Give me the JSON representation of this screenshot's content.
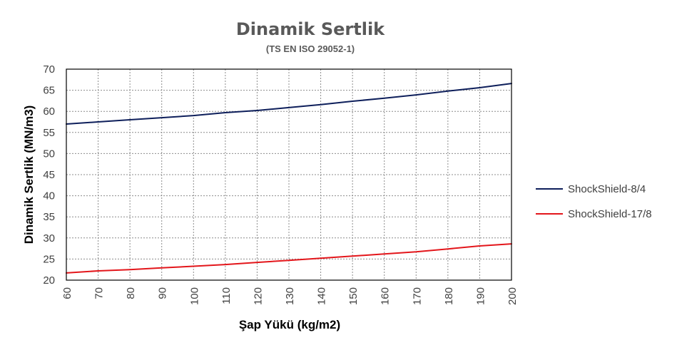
{
  "chart_data": {
    "type": "line",
    "title": "Dinamik Sertlik",
    "subtitle": "(TS EN ISO 29052-1)",
    "xlabel": "Şap Yükü (kg/m2)",
    "ylabel": "Dinamik Sertlik (MN/m3)",
    "x": [
      60,
      70,
      80,
      90,
      100,
      110,
      120,
      130,
      140,
      150,
      160,
      170,
      180,
      190,
      200
    ],
    "xlim": [
      60,
      200
    ],
    "ylim": [
      20,
      70
    ],
    "xticks": [
      "60",
      "70",
      "80",
      "90",
      "100",
      "110",
      "120",
      "130",
      "140",
      "150",
      "160",
      "170",
      "180",
      "190",
      "200"
    ],
    "yticks": [
      "20",
      "25",
      "30",
      "35",
      "40",
      "45",
      "50",
      "55",
      "60",
      "65",
      "70"
    ],
    "grid": true,
    "legend_position": "right",
    "series": [
      {
        "name": "ShockShield-8/4",
        "color": "#0e1f5b",
        "values": [
          57.0,
          57.5,
          58.0,
          58.5,
          59.0,
          59.7,
          60.2,
          60.9,
          61.6,
          62.4,
          63.1,
          63.9,
          64.8,
          65.6,
          66.6
        ]
      },
      {
        "name": "ShockShield-17/8",
        "color": "#e3161b",
        "values": [
          21.7,
          22.2,
          22.5,
          22.9,
          23.3,
          23.7,
          24.2,
          24.7,
          25.2,
          25.7,
          26.2,
          26.7,
          27.4,
          28.1,
          28.6
        ]
      }
    ]
  }
}
